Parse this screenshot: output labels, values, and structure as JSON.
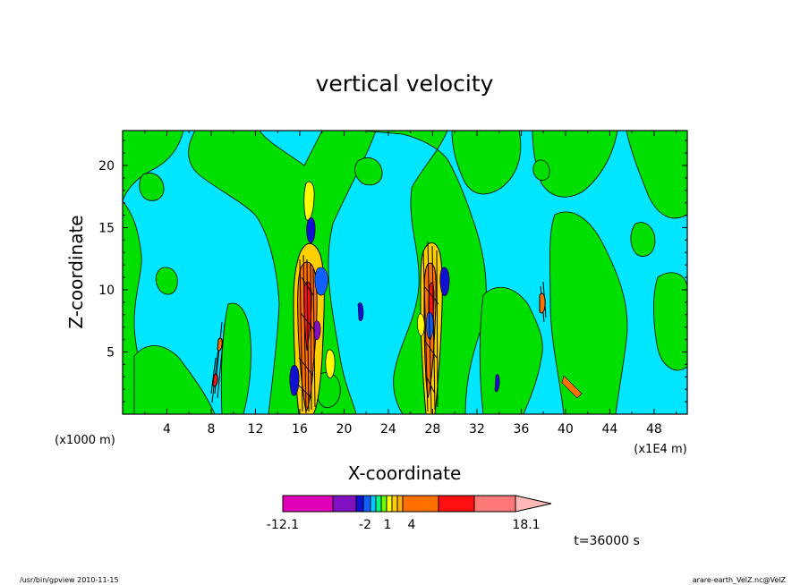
{
  "chart_data": {
    "type": "heatmap",
    "title": "vertical velocity",
    "xlabel": "X-coordinate",
    "ylabel": "Z-coordinate",
    "x_unit_label": "(x1E4 m)",
    "y_unit_label": "(x1000 m)",
    "x_ticks": [
      "4",
      "8",
      "12",
      "16",
      "20",
      "24",
      "28",
      "32",
      "36",
      "40",
      "44",
      "48"
    ],
    "y_ticks": [
      "5",
      "10",
      "15",
      "20"
    ],
    "xlim": [
      0,
      51
    ],
    "ylim": [
      0,
      22.8
    ],
    "fill_levels": [
      -12.1,
      -2,
      1,
      4,
      18.1
    ],
    "colorbar_labels": [
      "-12.1",
      "-2",
      "1",
      "4",
      "18.1"
    ],
    "colorbar_colors": [
      "#e000b8",
      "#8010c0",
      "#1010d0",
      "#1060ff",
      "#00c8ff",
      "#00ff80",
      "#66ff00",
      "#ffff00",
      "#ffd000",
      "#ffb000",
      "#ff7000",
      "#ff1010",
      "#ff7878",
      "#ffb8b8"
    ],
    "background_color": "#00e6ff",
    "updraft_columns_x": [
      9,
      17,
      28,
      38
    ],
    "time_label": "t=36000 s",
    "footer_left": "/usr/bin/gpview   2010-11-15",
    "footer_right": "arare-earth_VelZ.nc@VelZ"
  }
}
